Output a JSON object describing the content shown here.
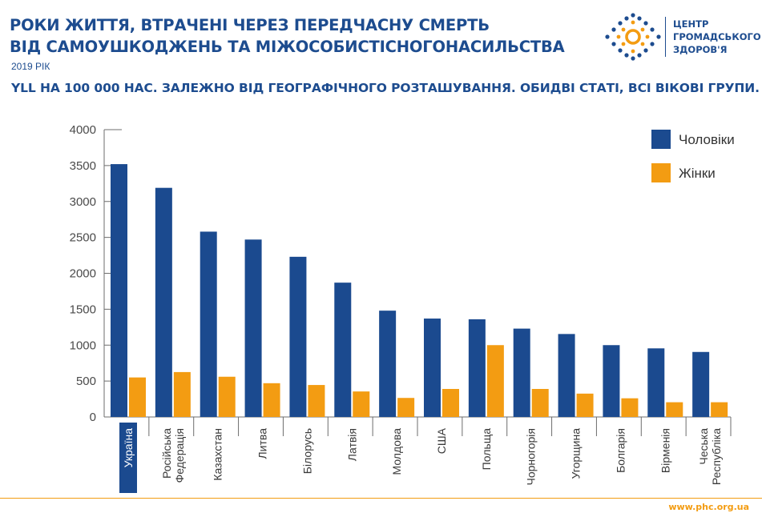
{
  "header": {
    "title_line1": "РОКИ ЖИТТЯ, ВТРАЧЕНІ ЧЕРЕЗ ПЕРЕДЧАСНУ СМЕРТЬ",
    "title_line2": "ВІД САМОУШКОДЖЕНЬ ТА МІЖОСОБИСТІСНОГОНАСИЛЬСТВА",
    "year": "2019 РІК",
    "subtitle": "YLL НА 100 000 НАС. ЗАЛЕЖНО ВІД ГЕОГРАФІЧНОГО РОЗТАШУВАННЯ. ОБИДВІ СТАТІ, ВСІ ВІКОВІ ГРУПИ."
  },
  "logo": {
    "line1": "ЦЕНТР",
    "line2": "ГРОМАДСЬКОГО",
    "line3": "ЗДОРОВ'Я"
  },
  "footer": {
    "url": "www.phc.org.ua"
  },
  "colors": {
    "men": "#1b4a8f",
    "women": "#f39c12",
    "title": "#1d4c8f",
    "axis": "#6d6d6d",
    "footer_line": "#f39c12"
  },
  "chart_data": {
    "type": "bar",
    "categories": [
      [
        "Україна"
      ],
      [
        "Російська",
        "Федерація"
      ],
      [
        "Казахстан"
      ],
      [
        "Литва"
      ],
      [
        "Білорусь"
      ],
      [
        "Латвія"
      ],
      [
        "Молдова"
      ],
      [
        "США"
      ],
      [
        "Польща"
      ],
      [
        "Чорногорія"
      ],
      [
        "Угорщина"
      ],
      [
        "Болгарія"
      ],
      [
        "Вірменія"
      ],
      [
        "Чеська",
        "Республіка"
      ]
    ],
    "highlighted_category": 0,
    "series": [
      {
        "name": "Чоловіки",
        "values": [
          3520,
          3190,
          2580,
          2470,
          2230,
          1870,
          1480,
          1370,
          1360,
          1230,
          1155,
          1000,
          955,
          905
        ]
      },
      {
        "name": "Жінки",
        "values": [
          550,
          625,
          560,
          470,
          445,
          355,
          265,
          390,
          1000,
          390,
          325,
          260,
          205,
          205
        ]
      }
    ],
    "yticks": [
      0,
      500,
      1000,
      1500,
      2000,
      2500,
      3000,
      3500,
      4000
    ],
    "ylim": [
      0,
      4000
    ],
    "xlabel": "",
    "ylabel": "",
    "legend_position": "top-right",
    "grid": false
  }
}
